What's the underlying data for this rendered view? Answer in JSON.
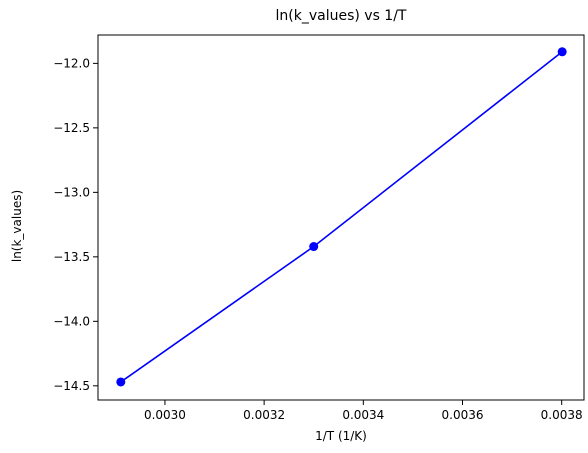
{
  "chart_data": {
    "type": "line",
    "title": "ln(k_values) vs 1/T",
    "xlabel": "1/T (1/K)",
    "ylabel": "ln(k_values)",
    "xlim": [
      0.002865,
      0.003845
    ],
    "ylim": [
      -14.61,
      -11.78
    ],
    "x_ticks": [
      0.003,
      0.0032,
      0.0034,
      0.0036,
      0.0038
    ],
    "x_tick_labels": [
      "0.0030",
      "0.0032",
      "0.0034",
      "0.0036",
      "0.0038"
    ],
    "y_ticks": [
      -14.5,
      -14.0,
      -13.5,
      -13.0,
      -12.5,
      -12.0
    ],
    "y_tick_labels": [
      "−14.5",
      "−14.0",
      "−13.5",
      "−13.0",
      "−12.5",
      "−12.0"
    ],
    "grid": false,
    "series": [
      {
        "color": "#0000ff",
        "marker": "circle",
        "x": [
          0.002911,
          0.0033,
          0.003801
        ],
        "y": [
          -14.47,
          -13.42,
          -11.91
        ]
      }
    ]
  }
}
